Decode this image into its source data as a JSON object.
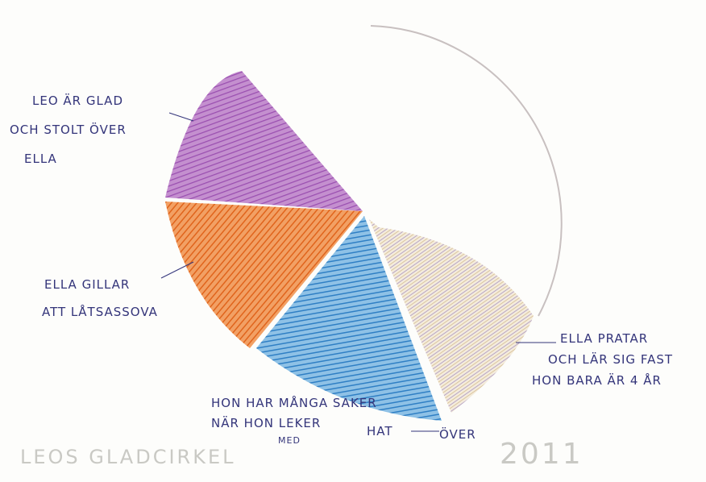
{
  "labels": [
    {
      "lines": [
        "LEO ÄR GLAD",
        "OCH STOLT ÖVER",
        "ELLA"
      ]
    },
    {
      "lines": [
        "ELLA GILLAR",
        "ATT LÅTSASSOVA"
      ]
    },
    {
      "lines": [
        "HON HAR MÅNGA SAKER",
        "NÄR HON LEKER",
        "MED"
      ]
    },
    {
      "lines": [
        "HAT",
        "ÖVER"
      ]
    },
    {
      "lines": [
        "ELLA PRATAR",
        "OCH LÄR SIG FAST",
        "HON BARA ÄR 4 ÅR"
      ]
    }
  ],
  "caption": "LEOS GLADCIRKEL",
  "year": "2011"
}
